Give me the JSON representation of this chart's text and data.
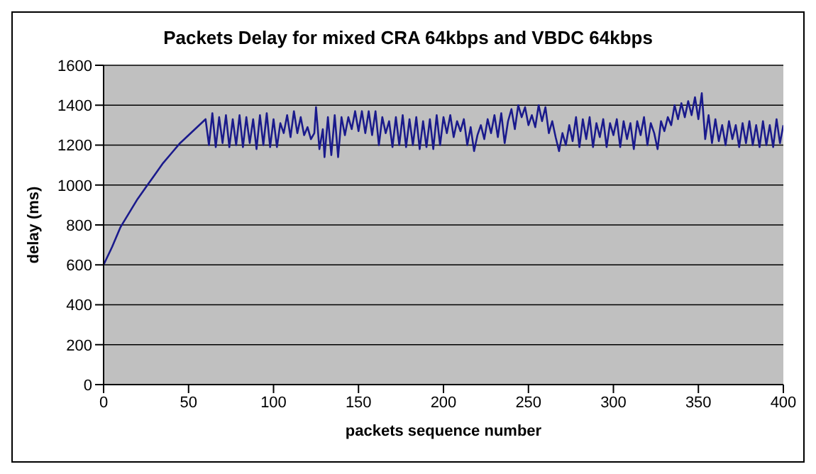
{
  "chart_data": {
    "type": "line",
    "title": "Packets Delay for mixed CRA 64kbps and VBDC 64kbps",
    "xlabel": "packets sequence number",
    "ylabel": "delay (ms)",
    "x": [
      0,
      5,
      10,
      15,
      20,
      25,
      30,
      35,
      40,
      45,
      50,
      55,
      60,
      62,
      64,
      66,
      68,
      70,
      72,
      74,
      76,
      78,
      80,
      82,
      84,
      86,
      88,
      90,
      92,
      94,
      96,
      98,
      100,
      102,
      104,
      106,
      108,
      110,
      112,
      114,
      116,
      118,
      120,
      122,
      124,
      125,
      127,
      129,
      130,
      132,
      134,
      136,
      138,
      140,
      142,
      144,
      146,
      148,
      150,
      152,
      154,
      156,
      158,
      160,
      162,
      164,
      166,
      168,
      170,
      172,
      174,
      176,
      178,
      180,
      182,
      184,
      186,
      188,
      190,
      192,
      194,
      196,
      198,
      200,
      202,
      204,
      206,
      208,
      210,
      212,
      214,
      216,
      218,
      220,
      222,
      224,
      226,
      228,
      230,
      232,
      234,
      236,
      238,
      240,
      242,
      244,
      246,
      248,
      250,
      252,
      254,
      256,
      258,
      260,
      262,
      264,
      266,
      268,
      270,
      272,
      274,
      276,
      278,
      280,
      282,
      284,
      286,
      288,
      290,
      292,
      294,
      296,
      298,
      300,
      302,
      304,
      306,
      308,
      310,
      312,
      314,
      316,
      318,
      320,
      322,
      324,
      326,
      328,
      330,
      332,
      334,
      336,
      338,
      340,
      342,
      344,
      346,
      348,
      350,
      352,
      354,
      356,
      358,
      360,
      362,
      364,
      366,
      368,
      370,
      372,
      374,
      376,
      378,
      380,
      382,
      384,
      386,
      388,
      390,
      392,
      394,
      396,
      398,
      400
    ],
    "series": [
      {
        "color": "#1a1a8c",
        "values": [
          600,
          690,
          790,
          860,
          930,
          990,
          1050,
          1110,
          1160,
          1210,
          1250,
          1290,
          1330,
          1200,
          1360,
          1190,
          1340,
          1210,
          1350,
          1190,
          1330,
          1200,
          1350,
          1190,
          1340,
          1210,
          1330,
          1180,
          1350,
          1200,
          1360,
          1190,
          1330,
          1190,
          1310,
          1260,
          1350,
          1240,
          1370,
          1260,
          1340,
          1250,
          1290,
          1230,
          1260,
          1390,
          1180,
          1280,
          1140,
          1340,
          1150,
          1350,
          1140,
          1340,
          1250,
          1340,
          1280,
          1370,
          1270,
          1370,
          1260,
          1370,
          1250,
          1370,
          1200,
          1340,
          1260,
          1320,
          1190,
          1340,
          1200,
          1350,
          1190,
          1330,
          1200,
          1340,
          1180,
          1320,
          1190,
          1330,
          1180,
          1350,
          1200,
          1340,
          1260,
          1350,
          1240,
          1320,
          1270,
          1330,
          1200,
          1290,
          1170,
          1250,
          1300,
          1230,
          1330,
          1260,
          1350,
          1240,
          1360,
          1210,
          1320,
          1380,
          1280,
          1400,
          1340,
          1390,
          1300,
          1350,
          1290,
          1400,
          1320,
          1390,
          1260,
          1320,
          1240,
          1170,
          1260,
          1200,
          1300,
          1220,
          1340,
          1190,
          1330,
          1230,
          1340,
          1190,
          1310,
          1240,
          1330,
          1190,
          1310,
          1250,
          1330,
          1190,
          1320,
          1230,
          1310,
          1180,
          1320,
          1250,
          1340,
          1200,
          1310,
          1260,
          1180,
          1320,
          1270,
          1340,
          1300,
          1400,
          1330,
          1410,
          1340,
          1420,
          1350,
          1440,
          1330,
          1460,
          1230,
          1350,
          1210,
          1330,
          1220,
          1300,
          1200,
          1320,
          1230,
          1300,
          1190,
          1310,
          1210,
          1320,
          1200,
          1300,
          1190,
          1320,
          1200,
          1300,
          1190,
          1330,
          1210,
          1300
        ]
      }
    ],
    "xlim": [
      0,
      400
    ],
    "xticks": [
      0,
      50,
      100,
      150,
      200,
      250,
      300,
      350,
      400
    ],
    "ylim": [
      0,
      1600
    ],
    "yticks": [
      0,
      200,
      400,
      600,
      800,
      1000,
      1200,
      1400,
      1600
    ],
    "grid": "y",
    "legend": false,
    "marker": "none",
    "line_style": "solid"
  }
}
